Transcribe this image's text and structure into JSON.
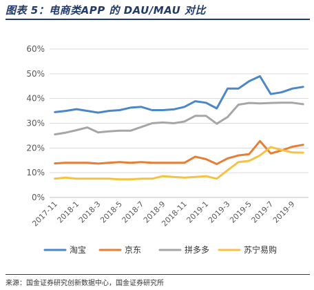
{
  "figure": {
    "title": "图表 5：电商类APP 的 DAU/MAU 对比",
    "source": "来源：国金证券研究创新数据中心，国金证券研究所"
  },
  "chart_data": {
    "type": "line",
    "x": [
      "2017-11",
      "2017-12",
      "2018-1",
      "2018-2",
      "2018-3",
      "2018-4",
      "2018-5",
      "2018-6",
      "2018-7",
      "2018-8",
      "2018-9",
      "2018-10",
      "2018-11",
      "2018-12",
      "2019-1",
      "2019-2",
      "2019-3",
      "2019-4",
      "2019-5",
      "2019-6",
      "2019-7",
      "2019-8",
      "2019-9",
      "2019-10"
    ],
    "x_tick_labels": [
      "2017-11",
      "2018-1",
      "2018-3",
      "2018-5",
      "2018-7",
      "2018-9",
      "2018-11",
      "2019-1",
      "2019-3",
      "2019-5",
      "2019-7",
      "2019-9"
    ],
    "y_tick_labels": [
      "0%",
      "10%",
      "20%",
      "30%",
      "40%",
      "50%",
      "60%"
    ],
    "ylim": [
      0,
      60
    ],
    "grid": "horizontal",
    "legend_position": "bottom",
    "series": [
      {
        "name": "淘宝",
        "color": "#4a86c8",
        "values": [
          34.5,
          35.0,
          35.7,
          35.0,
          34.3,
          35.0,
          35.3,
          36.3,
          36.6,
          35.3,
          35.3,
          35.6,
          36.6,
          38.9,
          38.3,
          36.0,
          44.0,
          44.0,
          47.0,
          49.0,
          41.8,
          42.5,
          44.0,
          44.7
        ]
      },
      {
        "name": "京东",
        "color": "#e87d35",
        "values": [
          13.8,
          14.0,
          14.0,
          14.0,
          13.7,
          14.0,
          14.3,
          14.0,
          14.3,
          14.0,
          14.0,
          14.0,
          14.0,
          16.5,
          15.5,
          13.5,
          15.8,
          17.0,
          17.5,
          22.8,
          17.8,
          19.0,
          20.5,
          21.3
        ]
      },
      {
        "name": "拼多多",
        "color": "#a6a6a6",
        "values": [
          25.5,
          26.2,
          27.2,
          28.3,
          26.3,
          26.7,
          27.0,
          27.0,
          28.5,
          30.0,
          30.3,
          30.0,
          30.7,
          33.0,
          33.0,
          29.8,
          32.5,
          37.5,
          38.2,
          38.0,
          38.2,
          38.3,
          38.3,
          37.7
        ]
      },
      {
        "name": "苏宁易购",
        "color": "#f5c242",
        "values": [
          7.6,
          8.0,
          7.6,
          7.6,
          7.6,
          7.6,
          7.3,
          7.3,
          7.6,
          7.6,
          8.6,
          8.3,
          8.0,
          8.3,
          8.6,
          7.6,
          11.0,
          14.3,
          14.8,
          17.0,
          20.4,
          19.2,
          18.2,
          18.1
        ]
      }
    ]
  }
}
